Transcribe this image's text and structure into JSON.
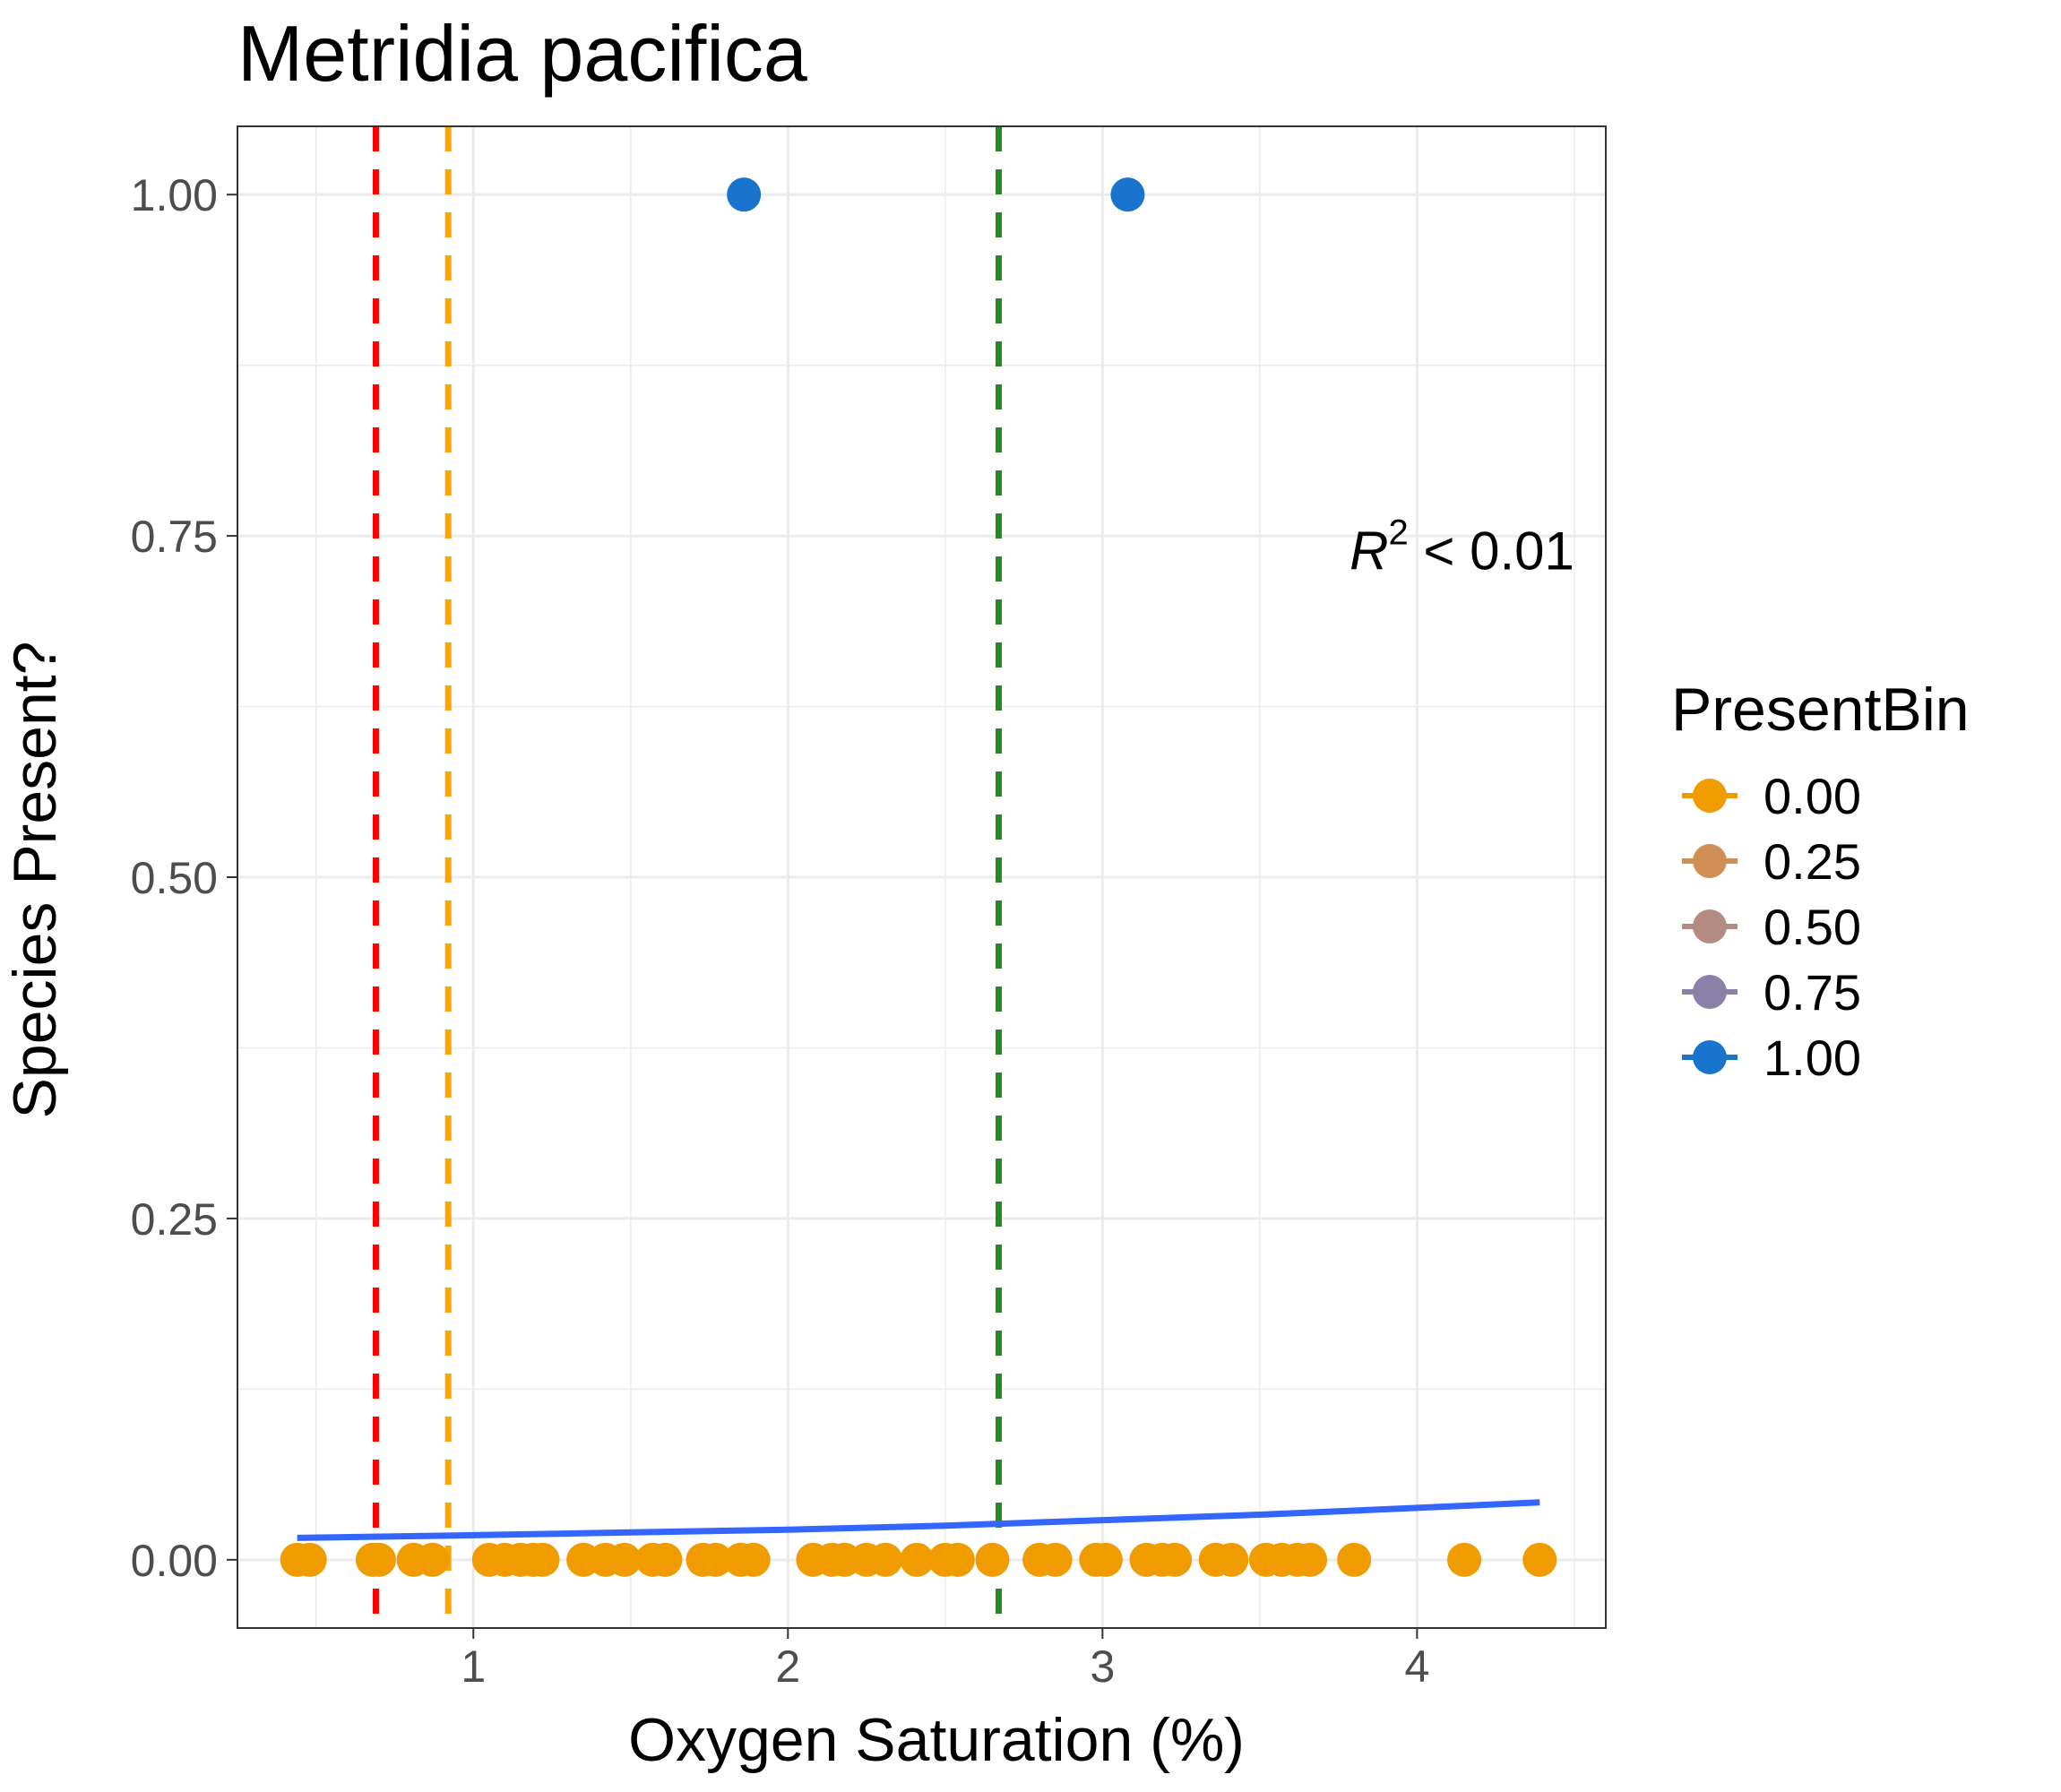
{
  "chart_data": {
    "type": "scatter",
    "title": "Metridia pacifica",
    "xlabel": "Oxygen Saturation (%)",
    "ylabel": "Species Present?",
    "xlim": [
      0.25,
      4.6
    ],
    "ylim": [
      -0.05,
      1.05
    ],
    "x_ticks": [
      1,
      2,
      3,
      4
    ],
    "x_tick_labels": [
      "1",
      "2",
      "3",
      "4"
    ],
    "x_minor_ticks": [
      0.5,
      1.5,
      2.5,
      3.5,
      4.5
    ],
    "y_ticks": [
      0,
      0.25,
      0.5,
      0.75,
      1
    ],
    "y_tick_labels": [
      "0.00",
      "0.25",
      "0.50",
      "0.75",
      "1.00"
    ],
    "y_minor_ticks": [
      0.125,
      0.375,
      0.625,
      0.875
    ],
    "grid": true,
    "colors": {
      "grid": "#ebebeb",
      "panel_border": "#333333",
      "fit_line": "#3366ff"
    },
    "legend": {
      "title": "PresentBin",
      "position": "right",
      "entries": [
        {
          "label": "0.00",
          "color": "#f09b00"
        },
        {
          "label": "0.25",
          "color": "#d28f55"
        },
        {
          "label": "0.50",
          "color": "#b48b80"
        },
        {
          "label": "0.75",
          "color": "#8a80a8"
        },
        {
          "label": "1.00",
          "color": "#1874cd"
        }
      ]
    },
    "series": [
      {
        "present_bin": 0,
        "color": "#f09b00",
        "points": [
          {
            "x": 0.44,
            "y": 0
          },
          {
            "x": 0.48,
            "y": 0
          },
          {
            "x": 0.68,
            "y": 0
          },
          {
            "x": 0.7,
            "y": 0
          },
          {
            "x": 0.81,
            "y": 0
          },
          {
            "x": 0.87,
            "y": 0
          },
          {
            "x": 1.05,
            "y": 0
          },
          {
            "x": 1.1,
            "y": 0
          },
          {
            "x": 1.15,
            "y": 0
          },
          {
            "x": 1.19,
            "y": 0
          },
          {
            "x": 1.22,
            "y": 0
          },
          {
            "x": 1.35,
            "y": 0
          },
          {
            "x": 1.42,
            "y": 0
          },
          {
            "x": 1.48,
            "y": 0
          },
          {
            "x": 1.57,
            "y": 0
          },
          {
            "x": 1.61,
            "y": 0
          },
          {
            "x": 1.73,
            "y": 0
          },
          {
            "x": 1.77,
            "y": 0
          },
          {
            "x": 1.85,
            "y": 0
          },
          {
            "x": 1.89,
            "y": 0
          },
          {
            "x": 2.08,
            "y": 0
          },
          {
            "x": 2.14,
            "y": 0
          },
          {
            "x": 2.18,
            "y": 0
          },
          {
            "x": 2.25,
            "y": 0
          },
          {
            "x": 2.31,
            "y": 0
          },
          {
            "x": 2.41,
            "y": 0
          },
          {
            "x": 2.5,
            "y": 0
          },
          {
            "x": 2.54,
            "y": 0
          },
          {
            "x": 2.65,
            "y": 0
          },
          {
            "x": 2.8,
            "y": 0
          },
          {
            "x": 2.85,
            "y": 0
          },
          {
            "x": 2.98,
            "y": 0
          },
          {
            "x": 3.01,
            "y": 0
          },
          {
            "x": 3.14,
            "y": 0
          },
          {
            "x": 3.19,
            "y": 0
          },
          {
            "x": 3.23,
            "y": 0
          },
          {
            "x": 3.36,
            "y": 0
          },
          {
            "x": 3.41,
            "y": 0
          },
          {
            "x": 3.52,
            "y": 0
          },
          {
            "x": 3.57,
            "y": 0
          },
          {
            "x": 3.62,
            "y": 0
          },
          {
            "x": 3.66,
            "y": 0
          },
          {
            "x": 3.8,
            "y": 0
          },
          {
            "x": 4.15,
            "y": 0
          },
          {
            "x": 4.39,
            "y": 0
          }
        ]
      },
      {
        "present_bin": 1,
        "color": "#1874cd",
        "points": [
          {
            "x": 1.86,
            "y": 1
          },
          {
            "x": 3.08,
            "y": 1
          }
        ]
      }
    ],
    "fit_line": {
      "color": "#3366ff",
      "points": [
        {
          "x": 0.44,
          "y": 0.016
        },
        {
          "x": 1.0,
          "y": 0.018
        },
        {
          "x": 1.5,
          "y": 0.02
        },
        {
          "x": 2.0,
          "y": 0.022
        },
        {
          "x": 2.5,
          "y": 0.025
        },
        {
          "x": 3.0,
          "y": 0.029
        },
        {
          "x": 3.5,
          "y": 0.033
        },
        {
          "x": 4.0,
          "y": 0.038
        },
        {
          "x": 4.39,
          "y": 0.042
        }
      ]
    },
    "reference_lines": [
      {
        "x": 0.69,
        "color": "#ff0000",
        "style": "dashed"
      },
      {
        "x": 0.92,
        "color": "#ffa500",
        "style": "dashed"
      },
      {
        "x": 2.67,
        "color": "#228b22",
        "style": "dashed"
      }
    ],
    "annotation": {
      "base": "R",
      "superscript": "2",
      "rest": " < 0.01",
      "x": 4.5,
      "y": 0.74
    }
  }
}
